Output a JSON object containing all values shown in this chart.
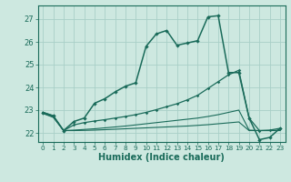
{
  "xlabel": "Humidex (Indice chaleur)",
  "bg_color": "#cde8e0",
  "grid_color": "#a8cfc7",
  "line_color": "#1a6b5a",
  "x_ticks": [
    0,
    1,
    2,
    3,
    4,
    5,
    6,
    7,
    8,
    9,
    10,
    11,
    12,
    13,
    14,
    15,
    16,
    17,
    18,
    19,
    20,
    21,
    22,
    23
  ],
  "ylim": [
    21.6,
    27.6
  ],
  "xlim": [
    -0.5,
    23.5
  ],
  "yticks": [
    22,
    23,
    24,
    25,
    26,
    27
  ],
  "series1_x": [
    0,
    1,
    2,
    3,
    4,
    5,
    6,
    7,
    8,
    9,
    10,
    11,
    12,
    13,
    14,
    15,
    16,
    17,
    18,
    19,
    20,
    21,
    22,
    23
  ],
  "series1_y": [
    22.9,
    22.75,
    22.1,
    22.5,
    22.65,
    23.3,
    23.5,
    23.8,
    24.05,
    24.2,
    25.8,
    26.35,
    26.5,
    25.85,
    25.95,
    26.05,
    27.1,
    27.15,
    24.65,
    24.65,
    22.65,
    21.7,
    21.8,
    22.2
  ],
  "series2_x": [
    0,
    1,
    2,
    3,
    4,
    5,
    6,
    7,
    8,
    9,
    10,
    11,
    12,
    13,
    14,
    15,
    16,
    17,
    18,
    19,
    20,
    21,
    22,
    23
  ],
  "series2_y": [
    22.9,
    22.75,
    22.1,
    22.35,
    22.45,
    22.52,
    22.58,
    22.65,
    22.72,
    22.8,
    22.9,
    23.02,
    23.15,
    23.28,
    23.45,
    23.65,
    23.95,
    24.25,
    24.55,
    24.75,
    22.65,
    22.1,
    22.12,
    22.2
  ],
  "series3_y": [
    22.85,
    22.68,
    22.1,
    22.1,
    22.11,
    22.12,
    22.14,
    22.16,
    22.18,
    22.2,
    22.22,
    22.24,
    22.26,
    22.28,
    22.3,
    22.33,
    22.36,
    22.4,
    22.44,
    22.48,
    22.1,
    22.1,
    22.1,
    22.1
  ],
  "series4_y": [
    22.87,
    22.7,
    22.1,
    22.12,
    22.15,
    22.18,
    22.22,
    22.26,
    22.3,
    22.35,
    22.4,
    22.45,
    22.5,
    22.55,
    22.6,
    22.65,
    22.72,
    22.8,
    22.9,
    23.0,
    22.12,
    22.1,
    22.1,
    22.12
  ]
}
